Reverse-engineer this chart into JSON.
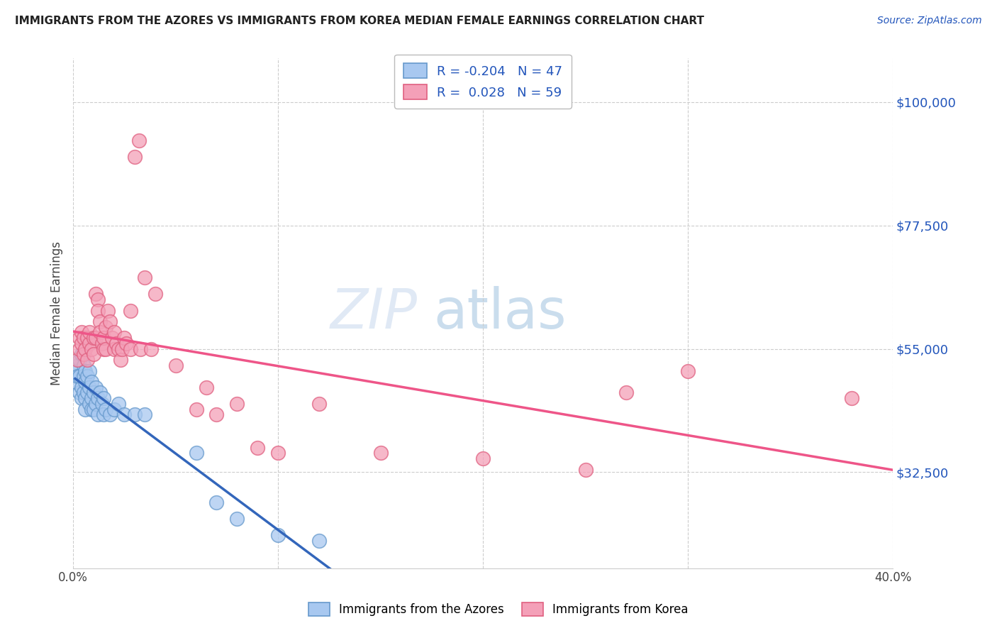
{
  "title": "IMMIGRANTS FROM THE AZORES VS IMMIGRANTS FROM KOREA MEDIAN FEMALE EARNINGS CORRELATION CHART",
  "source": "Source: ZipAtlas.com",
  "ylabel": "Median Female Earnings",
  "ytick_labels": [
    "$32,500",
    "$55,000",
    "$77,500",
    "$100,000"
  ],
  "ytick_values": [
    32500,
    55000,
    77500,
    100000
  ],
  "ylim": [
    15000,
    108000
  ],
  "xlim": [
    0.0,
    0.4
  ],
  "color_azores_fill": "#a8c8f0",
  "color_azores_edge": "#6699cc",
  "color_korea_fill": "#f4a0b8",
  "color_korea_edge": "#e06080",
  "color_azores_line": "#3366bb",
  "color_korea_line": "#ee5588",
  "color_text_blue": "#2255bb",
  "watermark": "ZIPatlas",
  "azores_points": [
    [
      0.001,
      51000
    ],
    [
      0.001,
      49000
    ],
    [
      0.002,
      52000
    ],
    [
      0.002,
      50000
    ],
    [
      0.003,
      53000
    ],
    [
      0.003,
      50000
    ],
    [
      0.003,
      47000
    ],
    [
      0.004,
      54000
    ],
    [
      0.004,
      48000
    ],
    [
      0.004,
      46000
    ],
    [
      0.005,
      52000
    ],
    [
      0.005,
      50000
    ],
    [
      0.005,
      47000
    ],
    [
      0.006,
      51000
    ],
    [
      0.006,
      49000
    ],
    [
      0.006,
      46000
    ],
    [
      0.006,
      44000
    ],
    [
      0.007,
      50000
    ],
    [
      0.007,
      47000
    ],
    [
      0.008,
      51000
    ],
    [
      0.008,
      48000
    ],
    [
      0.008,
      45000
    ],
    [
      0.009,
      49000
    ],
    [
      0.009,
      46000
    ],
    [
      0.009,
      44000
    ],
    [
      0.01,
      47000
    ],
    [
      0.01,
      44000
    ],
    [
      0.011,
      48000
    ],
    [
      0.011,
      45000
    ],
    [
      0.012,
      46000
    ],
    [
      0.012,
      43000
    ],
    [
      0.013,
      47000
    ],
    [
      0.014,
      45000
    ],
    [
      0.015,
      46000
    ],
    [
      0.015,
      43000
    ],
    [
      0.016,
      44000
    ],
    [
      0.018,
      43000
    ],
    [
      0.02,
      44000
    ],
    [
      0.022,
      45000
    ],
    [
      0.025,
      43000
    ],
    [
      0.03,
      43000
    ],
    [
      0.035,
      43000
    ],
    [
      0.06,
      36000
    ],
    [
      0.07,
      27000
    ],
    [
      0.08,
      24000
    ],
    [
      0.1,
      21000
    ],
    [
      0.12,
      20000
    ]
  ],
  "korea_points": [
    [
      0.002,
      53000
    ],
    [
      0.003,
      55000
    ],
    [
      0.003,
      57000
    ],
    [
      0.004,
      56000
    ],
    [
      0.004,
      58000
    ],
    [
      0.005,
      54000
    ],
    [
      0.005,
      57000
    ],
    [
      0.006,
      55000
    ],
    [
      0.007,
      53000
    ],
    [
      0.007,
      57000
    ],
    [
      0.008,
      56000
    ],
    [
      0.008,
      58000
    ],
    [
      0.009,
      55000
    ],
    [
      0.01,
      57000
    ],
    [
      0.01,
      54000
    ],
    [
      0.011,
      57000
    ],
    [
      0.011,
      65000
    ],
    [
      0.012,
      64000
    ],
    [
      0.012,
      62000
    ],
    [
      0.013,
      60000
    ],
    [
      0.013,
      58000
    ],
    [
      0.014,
      56000
    ],
    [
      0.015,
      55000
    ],
    [
      0.015,
      57000
    ],
    [
      0.016,
      59000
    ],
    [
      0.016,
      55000
    ],
    [
      0.017,
      62000
    ],
    [
      0.018,
      60000
    ],
    [
      0.019,
      57000
    ],
    [
      0.02,
      55000
    ],
    [
      0.02,
      58000
    ],
    [
      0.021,
      56000
    ],
    [
      0.022,
      55000
    ],
    [
      0.023,
      53000
    ],
    [
      0.024,
      55000
    ],
    [
      0.025,
      57000
    ],
    [
      0.026,
      56000
    ],
    [
      0.028,
      62000
    ],
    [
      0.028,
      55000
    ],
    [
      0.03,
      90000
    ],
    [
      0.032,
      93000
    ],
    [
      0.033,
      55000
    ],
    [
      0.035,
      68000
    ],
    [
      0.038,
      55000
    ],
    [
      0.04,
      65000
    ],
    [
      0.05,
      52000
    ],
    [
      0.06,
      44000
    ],
    [
      0.065,
      48000
    ],
    [
      0.07,
      43000
    ],
    [
      0.08,
      45000
    ],
    [
      0.09,
      37000
    ],
    [
      0.1,
      36000
    ],
    [
      0.12,
      45000
    ],
    [
      0.15,
      36000
    ],
    [
      0.2,
      35000
    ],
    [
      0.25,
      33000
    ],
    [
      0.27,
      47000
    ],
    [
      0.3,
      51000
    ],
    [
      0.38,
      46000
    ]
  ]
}
